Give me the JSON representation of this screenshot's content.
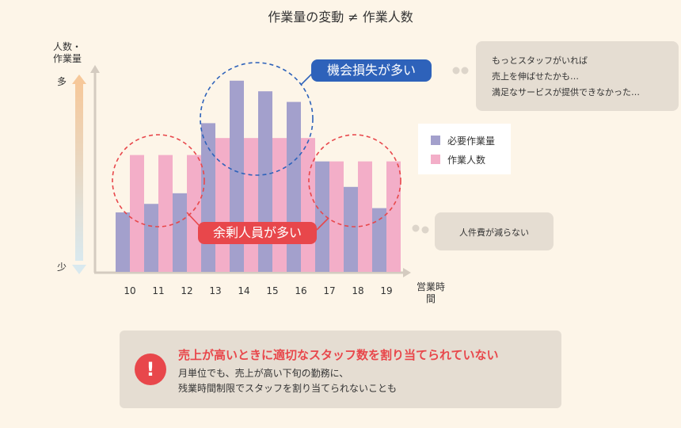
{
  "title": "作業量の変動 ≠ 作業人数",
  "chart_data": {
    "type": "bar",
    "categories": [
      "10",
      "11",
      "12",
      "13",
      "14",
      "15",
      "16",
      "17",
      "18",
      "19"
    ],
    "series": [
      {
        "name": "必要作業量",
        "color": "#a3a0cc",
        "values": [
          2.8,
          3.2,
          3.7,
          7.0,
          9.0,
          8.5,
          8.0,
          5.2,
          4.0,
          3.0
        ]
      },
      {
        "name": "作業人数",
        "color": "#f3aec8",
        "values": [
          5.5,
          5.5,
          5.5,
          6.3,
          6.3,
          6.3,
          6.3,
          5.2,
          5.2,
          5.2
        ]
      }
    ],
    "ylabel": "人数・作業量",
    "y_high": "多",
    "y_low": "少",
    "xlabel": "営業時間",
    "ylim": [
      0,
      10
    ],
    "legend": "right",
    "grid": false,
    "annotations": {
      "opportunity_loss": "機会損失が多い",
      "surplus_staff": "余剰人員が多い"
    }
  },
  "bubble_opportunity": {
    "lines": [
      "もっとスタッフがいれば",
      "売上を伸ばせたかも…",
      "満足なサービスが提供できなかった…"
    ]
  },
  "bubble_surplus": {
    "text": "人件費が減らない"
  },
  "callout": {
    "icon": "!",
    "heading": "売上が高いときに適切なスタッフ数を割り当てられていない",
    "body_line1": "月単位でも、売上が高い下旬の勤務に、",
    "body_line2": "残業時間制限でスタッフを割り当てられないことも"
  },
  "colors": {
    "background": "#fdf5e8",
    "required_work": "#a3a0cc",
    "staff_count": "#f3aec8",
    "accent_red": "#e8474b",
    "accent_blue": "#2e62ba",
    "bubble": "#e5ddd2"
  }
}
